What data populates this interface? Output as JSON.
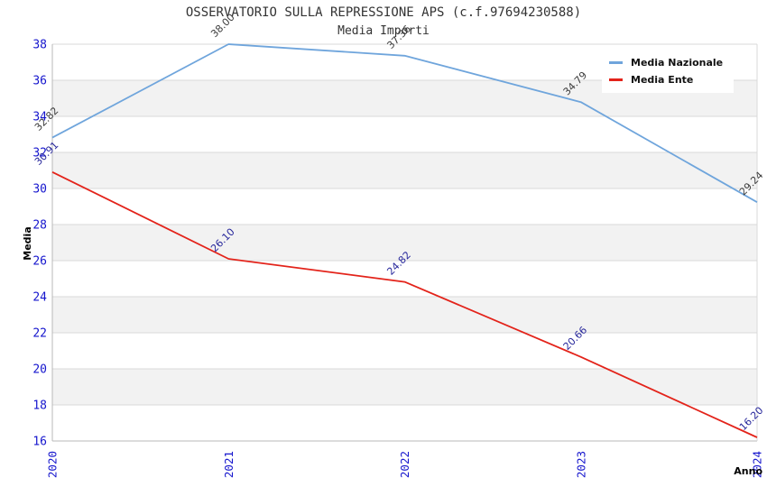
{
  "chart_data": {
    "type": "line",
    "title": "OSSERVATORIO SULLA REPRESSIONE APS (c.f.97694230588)",
    "subtitle": "Media Importi",
    "xlabel": "Anno",
    "ylabel": "Media",
    "x_categories": [
      "2020",
      "2021",
      "2022",
      "2023",
      "2024"
    ],
    "ylim": [
      16,
      38
    ],
    "ytick_step": 2,
    "grid": true,
    "legend_position": "top-right",
    "colors": {
      "band_white": "#ffffff",
      "band_gray": "#f2f2f2",
      "gridline": "#d9d9d9",
      "axis_line": "#b8b8b8",
      "tick_label": "#1515cd",
      "title_text": "#333333",
      "axis_title_text": "#000000",
      "legend_text": "#111111",
      "legend_background": "#ffffff"
    },
    "series": [
      {
        "name": "Media Nazionale",
        "color": "#6fa5dc",
        "label_color": "#3c3c3c",
        "values": [
          32.82,
          38.0,
          37.36,
          34.79,
          29.24
        ],
        "labels": [
          "32.82",
          "38.00",
          "37.36",
          "34.79",
          "29.24"
        ]
      },
      {
        "name": "Media Ente",
        "color": "#e3231a",
        "label_color": "#26269b",
        "values": [
          30.91,
          26.1,
          24.82,
          20.66,
          16.2
        ],
        "labels": [
          "30.91",
          "26.10",
          "24.82",
          "20.66",
          "16.20"
        ]
      }
    ]
  }
}
